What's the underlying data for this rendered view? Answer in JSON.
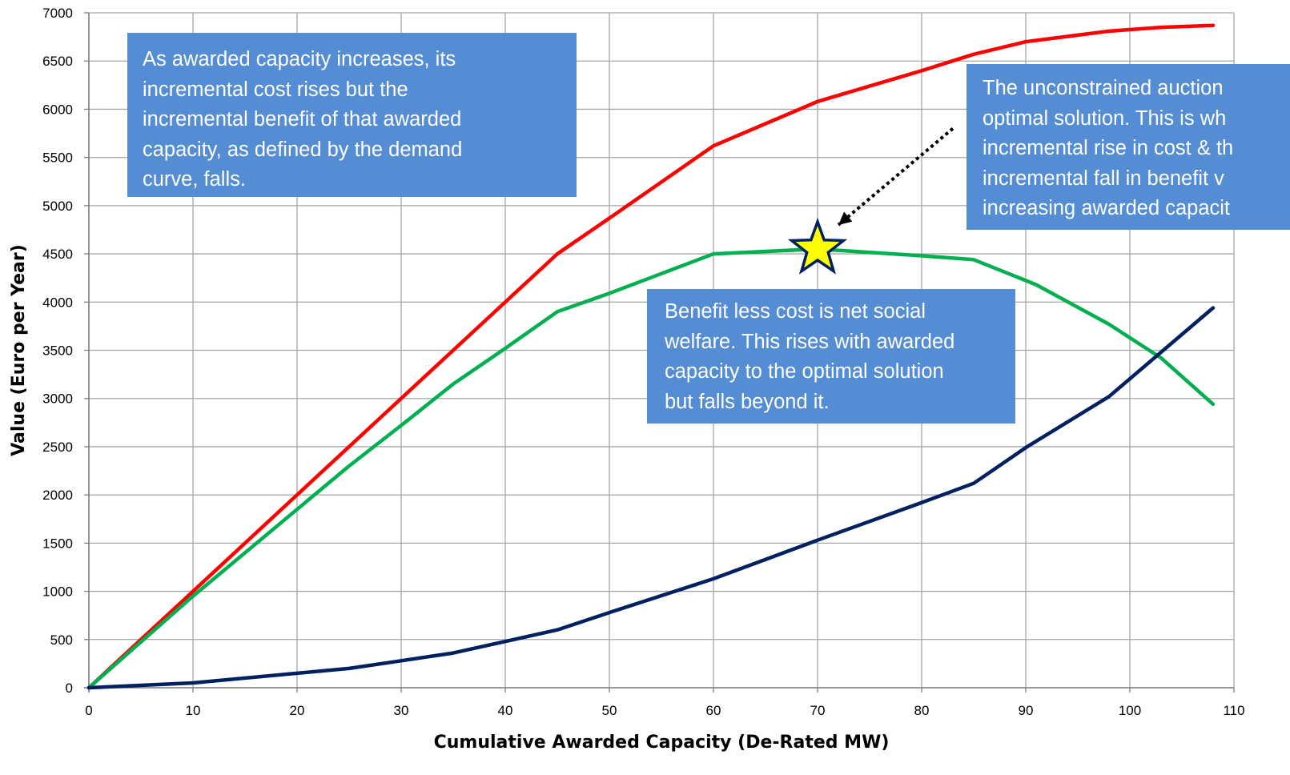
{
  "chart_data": {
    "type": "line",
    "title": "",
    "xlabel": "Cumulative Awarded Capacity (De-Rated MW)",
    "ylabel": "Value (Euro per Year)",
    "xlim": [
      0,
      110
    ],
    "ylim": [
      0,
      7000
    ],
    "xticks": [
      0,
      10,
      20,
      30,
      40,
      50,
      60,
      70,
      80,
      90,
      100,
      110
    ],
    "yticks": [
      0,
      500,
      1000,
      1500,
      2000,
      2500,
      3000,
      3500,
      4000,
      4500,
      5000,
      5500,
      6000,
      6500,
      7000
    ],
    "grid": true,
    "legend": "none",
    "series": [
      {
        "color": "#ff0000",
        "x": [
          0,
          10,
          20,
          30,
          40,
          45,
          50,
          60,
          70,
          80,
          85,
          90,
          98,
          103,
          108
        ],
        "y": [
          0,
          1000,
          2000,
          3000,
          4000,
          4500,
          4870,
          5620,
          6080,
          6400,
          6570,
          6700,
          6810,
          6850,
          6870
        ]
      },
      {
        "color": "#00b050",
        "x": [
          0,
          10,
          20,
          25,
          30,
          35,
          40,
          45,
          50,
          60,
          70,
          80,
          85,
          91,
          98,
          103,
          108
        ],
        "y": [
          0,
          950,
          1850,
          2300,
          2720,
          3150,
          3520,
          3900,
          4090,
          4500,
          4550,
          4480,
          4440,
          4180,
          3770,
          3420,
          2940
        ]
      },
      {
        "color": "#002060",
        "x": [
          0,
          10,
          20,
          25,
          30,
          35,
          40,
          45,
          50,
          60,
          70,
          80,
          85,
          90,
          98,
          108
        ],
        "y": [
          0,
          50,
          150,
          200,
          280,
          360,
          480,
          600,
          780,
          1130,
          1530,
          1920,
          2120,
          2490,
          3020,
          3940
        ]
      }
    ],
    "marker": {
      "shape": "star",
      "x": 70,
      "y": 4550,
      "fill": "#ffff00",
      "stroke": "#002060"
    },
    "arrow": {
      "style": "dotted",
      "from": [
        83,
        5800
      ],
      "to": [
        72,
        4800
      ]
    },
    "annotations": [
      [
        "As awarded capacity increases, its",
        "incremental cost rises but the",
        "incremental benefit of that awarded",
        "capacity, as defined by the demand",
        "curve, falls."
      ],
      [
        "Benefit less cost is net social",
        "welfare.  This rises with awarded",
        "capacity to the optimal solution",
        "but falls beyond it."
      ],
      [
        "The unconstrained auction",
        "optimal solution.  This is wh",
        "incremental rise in cost & th",
        "incremental fall in benefit v",
        "increasing awarded capacit"
      ]
    ],
    "annotation_color": "#548dd4"
  }
}
